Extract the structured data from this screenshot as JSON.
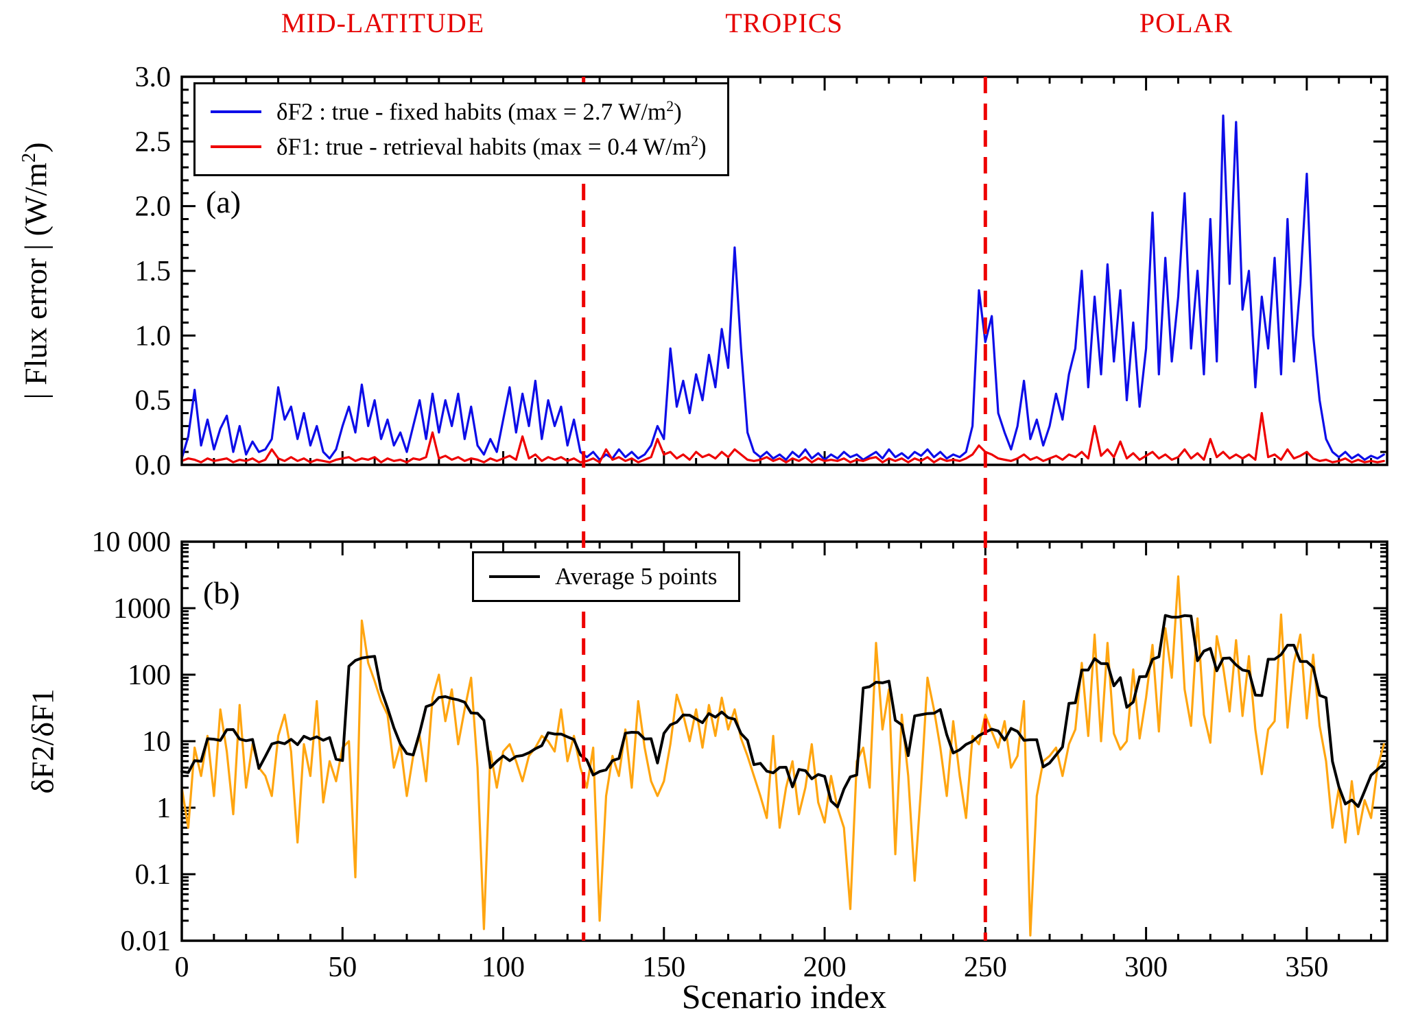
{
  "figure": {
    "region_labels": {
      "mid": "MID-LATITUDE",
      "tropics": "TROPICS",
      "polar": "POLAR"
    },
    "panel_a_tag": "(a)",
    "panel_b_tag": "(b)",
    "xlabel": "Scenario index",
    "colors": {
      "blue": "#0d0de8",
      "red": "#ee0000",
      "orange": "#ffa510",
      "black": "#000000",
      "divider": "#ee0000",
      "region_label": "#e60000"
    }
  },
  "ylabel_a": {
    "pre": "| Flux error |  (W/m",
    "sup": "2",
    "post": ")"
  },
  "ylabel_b": "δF2/δF1",
  "legend_a": {
    "item1": {
      "pre": "δF2 : true - fixed habits (max = 2.7 W/m",
      "sup": "2",
      "post": ")"
    },
    "item2": {
      "pre": "δF1: true - retrieval habits (max = 0.4 W/m",
      "sup": "2",
      "post": ")"
    }
  },
  "legend_b": {
    "label": "Average 5 points"
  },
  "chart_data": [
    {
      "panel": "a",
      "type": "line",
      "xlabel": "Scenario index",
      "ylabel": "| Flux error | (W/m2)",
      "xlim": [
        0,
        375
      ],
      "ylim": [
        0,
        3
      ],
      "yscale": "linear",
      "grid": false,
      "xticks": [
        0,
        50,
        100,
        150,
        200,
        250,
        300,
        350
      ],
      "x_minor_step": 10,
      "yticks": [
        0,
        0.5,
        1,
        1.5,
        2,
        2.5,
        3
      ],
      "ytick_labels": [
        "0.0",
        "0.5",
        "1.0",
        "1.5",
        "2.0",
        "2.5",
        "3.0"
      ],
      "y_minor_step": 0.1,
      "dividers_x": [
        125,
        250
      ],
      "x_start": 0,
      "x_step": 2,
      "series": [
        {
          "name": "δF2 : true - fixed habits (max = 2.7 W/m2)",
          "color_key": "blue",
          "values": [
            0.05,
            0.22,
            0.58,
            0.15,
            0.35,
            0.12,
            0.28,
            0.38,
            0.1,
            0.3,
            0.08,
            0.18,
            0.1,
            0.12,
            0.2,
            0.6,
            0.35,
            0.45,
            0.2,
            0.4,
            0.15,
            0.3,
            0.1,
            0.05,
            0.12,
            0.3,
            0.45,
            0.25,
            0.62,
            0.3,
            0.5,
            0.2,
            0.35,
            0.15,
            0.25,
            0.1,
            0.3,
            0.5,
            0.2,
            0.55,
            0.25,
            0.5,
            0.3,
            0.55,
            0.2,
            0.45,
            0.15,
            0.08,
            0.2,
            0.1,
            0.35,
            0.6,
            0.25,
            0.55,
            0.3,
            0.65,
            0.2,
            0.5,
            0.3,
            0.45,
            0.15,
            0.35,
            0.1,
            0.06,
            0.1,
            0.04,
            0.08,
            0.05,
            0.12,
            0.06,
            0.1,
            0.05,
            0.08,
            0.15,
            0.3,
            0.2,
            0.9,
            0.45,
            0.65,
            0.4,
            0.7,
            0.5,
            0.85,
            0.6,
            1.05,
            0.75,
            1.68,
            0.9,
            0.25,
            0.1,
            0.06,
            0.1,
            0.05,
            0.08,
            0.04,
            0.1,
            0.06,
            0.12,
            0.05,
            0.09,
            0.04,
            0.08,
            0.05,
            0.1,
            0.06,
            0.08,
            0.04,
            0.07,
            0.1,
            0.05,
            0.12,
            0.06,
            0.09,
            0.05,
            0.1,
            0.07,
            0.12,
            0.06,
            0.1,
            0.05,
            0.08,
            0.06,
            0.1,
            0.3,
            1.35,
            0.95,
            1.15,
            0.4,
            0.25,
            0.12,
            0.3,
            0.65,
            0.2,
            0.35,
            0.15,
            0.3,
            0.55,
            0.35,
            0.7,
            0.9,
            1.5,
            0.6,
            1.3,
            0.7,
            1.55,
            0.8,
            1.35,
            0.5,
            1.1,
            0.45,
            0.9,
            1.95,
            0.7,
            1.6,
            0.8,
            1.3,
            2.1,
            0.9,
            1.5,
            0.7,
            1.9,
            0.8,
            2.7,
            1.4,
            2.65,
            1.2,
            1.5,
            0.6,
            1.3,
            0.9,
            1.6,
            0.7,
            1.9,
            0.8,
            1.4,
            2.25,
            1.0,
            0.5,
            0.2,
            0.1,
            0.06,
            0.1,
            0.05,
            0.08,
            0.04,
            0.07,
            0.05,
            0.08
          ]
        },
        {
          "name": "δF1: true - retrieval habits (max = 0.4 W/m2)",
          "color_key": "red",
          "values": [
            0.03,
            0.05,
            0.04,
            0.02,
            0.05,
            0.03,
            0.04,
            0.05,
            0.02,
            0.04,
            0.03,
            0.05,
            0.02,
            0.04,
            0.12,
            0.05,
            0.03,
            0.06,
            0.03,
            0.05,
            0.02,
            0.04,
            0.03,
            0.02,
            0.04,
            0.05,
            0.06,
            0.03,
            0.05,
            0.04,
            0.06,
            0.02,
            0.05,
            0.03,
            0.04,
            0.02,
            0.05,
            0.04,
            0.06,
            0.25,
            0.05,
            0.07,
            0.04,
            0.06,
            0.03,
            0.05,
            0.04,
            0.02,
            0.05,
            0.03,
            0.05,
            0.07,
            0.04,
            0.22,
            0.05,
            0.08,
            0.03,
            0.06,
            0.04,
            0.06,
            0.03,
            0.05,
            0.02,
            0.03,
            0.05,
            0.02,
            0.12,
            0.04,
            0.06,
            0.03,
            0.05,
            0.02,
            0.04,
            0.06,
            0.2,
            0.08,
            0.1,
            0.05,
            0.08,
            0.04,
            0.1,
            0.06,
            0.08,
            0.05,
            0.1,
            0.06,
            0.12,
            0.08,
            0.04,
            0.03,
            0.04,
            0.06,
            0.03,
            0.05,
            0.02,
            0.05,
            0.03,
            0.06,
            0.02,
            0.05,
            0.03,
            0.04,
            0.03,
            0.05,
            0.02,
            0.04,
            0.03,
            0.05,
            0.06,
            0.02,
            0.05,
            0.03,
            0.05,
            0.02,
            0.05,
            0.03,
            0.06,
            0.02,
            0.05,
            0.03,
            0.04,
            0.03,
            0.05,
            0.08,
            0.15,
            0.1,
            0.08,
            0.05,
            0.04,
            0.03,
            0.05,
            0.08,
            0.04,
            0.06,
            0.03,
            0.05,
            0.07,
            0.04,
            0.08,
            0.06,
            0.1,
            0.05,
            0.3,
            0.07,
            0.12,
            0.06,
            0.18,
            0.05,
            0.09,
            0.04,
            0.07,
            0.1,
            0.05,
            0.08,
            0.04,
            0.06,
            0.12,
            0.05,
            0.09,
            0.04,
            0.2,
            0.06,
            0.1,
            0.05,
            0.08,
            0.05,
            0.08,
            0.04,
            0.4,
            0.06,
            0.08,
            0.04,
            0.12,
            0.05,
            0.07,
            0.1,
            0.05,
            0.03,
            0.04,
            0.02,
            0.03,
            0.05,
            0.02,
            0.04,
            0.02,
            0.03,
            0.02,
            0.03
          ]
        }
      ]
    },
    {
      "panel": "b",
      "type": "line",
      "xlabel": "Scenario index",
      "ylabel": "δF2/δF1",
      "xlim": [
        0,
        375
      ],
      "ylim": [
        0.01,
        10000
      ],
      "yscale": "log",
      "grid": false,
      "xticks": [
        0,
        50,
        100,
        150,
        200,
        250,
        300,
        350
      ],
      "x_minor_step": 10,
      "yticks": [
        0.01,
        0.1,
        1,
        10,
        100,
        1000,
        10000
      ],
      "ytick_labels": [
        "0.01",
        "0.1",
        "1",
        "10",
        "100",
        "1000",
        "10 000"
      ],
      "dividers_x": [
        125,
        250
      ],
      "x_start": 0,
      "x_step": 2,
      "series": [
        {
          "name": "δF2/δF1 ratio",
          "color_key": "orange",
          "values": [
            2,
            0.5,
            8,
            3,
            12,
            1.5,
            30,
            7,
            0.8,
            35,
            2,
            9,
            4,
            3,
            1.5,
            12,
            25,
            7,
            0.3,
            9,
            3,
            40,
            1.2,
            5,
            2.5,
            8,
            10,
            0.09,
            650,
            150,
            80,
            40,
            25,
            4,
            9,
            1.5,
            6,
            12,
            2.5,
            45,
            100,
            20,
            60,
            9,
            30,
            90,
            4,
            0.015,
            7,
            2,
            7,
            9,
            5,
            2.5,
            6,
            8,
            12,
            10,
            7,
            30,
            5,
            12,
            4,
            2,
            8,
            0.02,
            1.5,
            6,
            3,
            15,
            2,
            40,
            8,
            2.5,
            1.5,
            2.5,
            9,
            50,
            25,
            10,
            30,
            8,
            35,
            12,
            45,
            15,
            30,
            11,
            6,
            3,
            1.5,
            0.7,
            12,
            0.5,
            2,
            5,
            0.8,
            2,
            9,
            1.2,
            0.6,
            3,
            1,
            0.5,
            0.03,
            5,
            8,
            2,
            300,
            15,
            60,
            0.2,
            25,
            3,
            0.08,
            2,
            90,
            30,
            8,
            1.5,
            20,
            3,
            0.7,
            12,
            9,
            25,
            14,
            8,
            20,
            4,
            6,
            40,
            0.012,
            1.5,
            5,
            6,
            8,
            3,
            9,
            15,
            150,
            12,
            400,
            10,
            300,
            13,
            7.5,
            10,
            120,
            11,
            45,
            280,
            14,
            500,
            90,
            3000,
            60,
            17,
            700,
            25,
            9.5,
            380,
            130,
            28,
            330,
            24,
            190,
            15,
            3.2,
            15,
            20,
            800,
            16,
            150,
            400,
            22,
            200,
            17,
            5,
            0.5,
            2,
            0.3,
            2.5,
            0.4,
            1.3,
            0.7,
            4,
            9
          ]
        },
        {
          "name": "Average 5 points",
          "color_key": "black",
          "derived": "moving_average_5_of_series_0"
        }
      ]
    }
  ]
}
